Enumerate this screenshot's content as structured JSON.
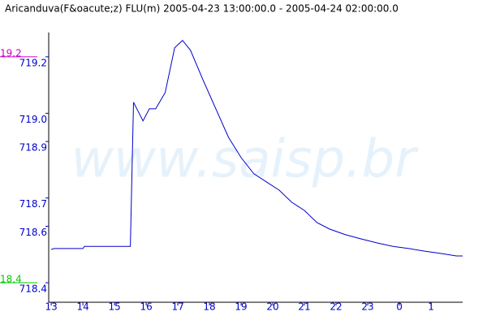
{
  "chart_data": {
    "type": "line",
    "title": "Aricanduva(F&oacute;z) FLU(m) 2005-04-23 13:00:00.0 - 2005-04-24 02:00:00.0",
    "watermark": "www.saisp.br",
    "x": [
      13,
      13.1,
      14.0,
      14.05,
      15.5,
      15.6,
      15.9,
      16.1,
      16.3,
      16.6,
      16.9,
      17.15,
      17.4,
      17.8,
      18.2,
      18.6,
      19.0,
      19.4,
      19.8,
      20.2,
      20.6,
      21.0,
      21.4,
      21.8,
      22.3,
      22.8,
      23.3,
      23.8,
      24.3,
      24.8,
      25.3,
      25.8,
      26.0
    ],
    "series": [
      {
        "color": "#0000cc",
        "values": [
          718.518,
          718.521,
          718.521,
          718.529,
          718.529,
          719.039,
          718.973,
          719.016,
          719.016,
          719.073,
          719.232,
          719.258,
          719.223,
          719.117,
          719.016,
          718.915,
          718.843,
          718.786,
          718.757,
          718.728,
          718.685,
          718.656,
          718.613,
          718.59,
          718.57,
          718.555,
          718.541,
          718.529,
          718.521,
          718.512,
          718.504,
          718.495,
          718.495
        ]
      }
    ],
    "xlim": [
      12.92,
      26.0
    ],
    "xticks": [
      13,
      14,
      15,
      16,
      17,
      18,
      19,
      20,
      21,
      22,
      23,
      {
        "value": 24,
        "label": "0"
      },
      {
        "value": 25,
        "label": "1"
      }
    ],
    "ylim": [
      718.331,
      719.286
    ],
    "yticks": [
      {
        "value": 719.2,
        "label": "719.2"
      },
      {
        "value": 719,
        "label": "719.0"
      },
      {
        "value": 718.9,
        "label": "718.9"
      },
      {
        "value": 718.7,
        "label": "718.7"
      },
      {
        "value": 718.6,
        "label": "718.6"
      },
      {
        "value": 718.4,
        "label": "718.4"
      }
    ],
    "tick_color": "#0000cc",
    "reference_lines": [
      {
        "value": 719.2,
        "label": "19.2",
        "color": "#cc00cc"
      },
      {
        "value": 718.4,
        "label": "18.4",
        "color": "#00cc00"
      }
    ]
  }
}
